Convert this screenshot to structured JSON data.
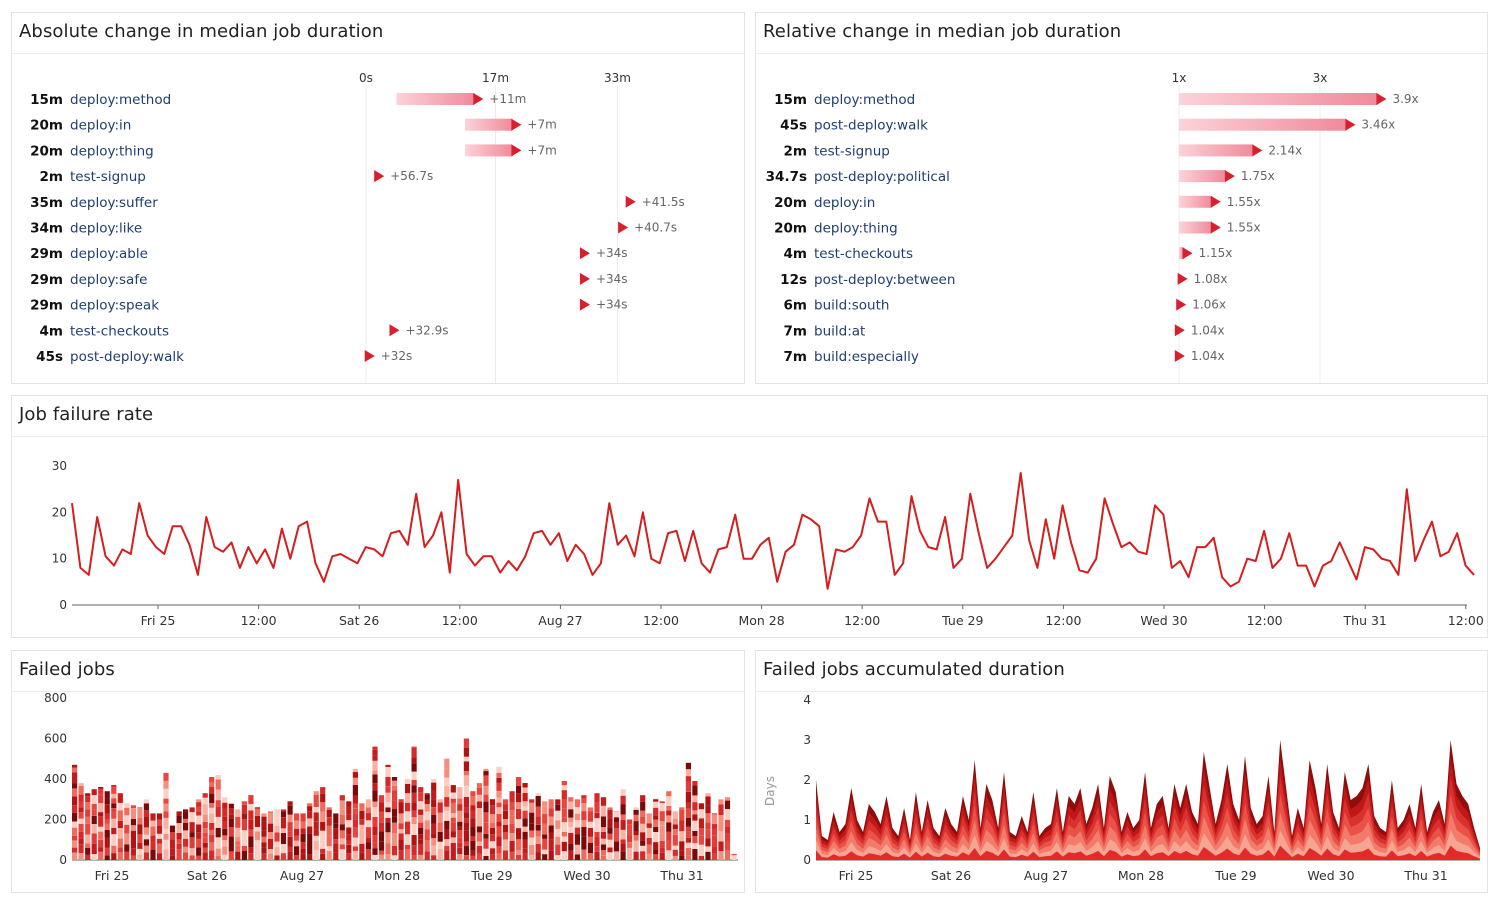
{
  "colors": {
    "accent": "#d81f2e",
    "bar_light": "#f7b3bd",
    "line": "#d31f1f",
    "axis": "#555555",
    "grid": "#e8e8e8",
    "label_blue": "#1f3e70"
  },
  "abs_panel": {
    "title": "Absolute change in median job duration",
    "axis_ticks": [
      {
        "label": "0s",
        "value": 0
      },
      {
        "label": "17m",
        "value": 17
      },
      {
        "label": "33m",
        "value": 33
      }
    ],
    "rows": [
      {
        "duration": "15m",
        "name": "deploy:method",
        "start": 4,
        "end": 15,
        "change": "+11m"
      },
      {
        "duration": "20m",
        "name": "deploy:in",
        "start": 13,
        "end": 20,
        "change": "+7m"
      },
      {
        "duration": "20m",
        "name": "deploy:thing",
        "start": 13,
        "end": 20,
        "change": "+7m"
      },
      {
        "duration": "2m",
        "name": "test-signup",
        "start": 1.05,
        "end": 2,
        "change": "+56.7s"
      },
      {
        "duration": "35m",
        "name": "deploy:suffer",
        "start": 34.3,
        "end": 35,
        "change": "+41.5s"
      },
      {
        "duration": "34m",
        "name": "deploy:like",
        "start": 33.3,
        "end": 34,
        "change": "+40.7s"
      },
      {
        "duration": "29m",
        "name": "deploy:able",
        "start": 28.4,
        "end": 29,
        "change": "+34s"
      },
      {
        "duration": "29m",
        "name": "deploy:safe",
        "start": 28.4,
        "end": 29,
        "change": "+34s"
      },
      {
        "duration": "29m",
        "name": "deploy:speak",
        "start": 28.4,
        "end": 29,
        "change": "+34s"
      },
      {
        "duration": "4m",
        "name": "test-checkouts",
        "start": 3.45,
        "end": 4,
        "change": "+32.9s"
      },
      {
        "duration": "45s",
        "name": "post-deploy:walk",
        "start": 0.2,
        "end": 0.75,
        "change": "+32s"
      }
    ]
  },
  "rel_panel": {
    "title": "Relative change in median job duration",
    "axis_ticks": [
      {
        "label": "1x",
        "value": 1
      },
      {
        "label": "3x",
        "value": 3
      }
    ],
    "rows": [
      {
        "duration": "15m",
        "name": "deploy:method",
        "ratio": 3.9,
        "label": "3.9x"
      },
      {
        "duration": "45s",
        "name": "post-deploy:walk",
        "ratio": 3.46,
        "label": "3.46x"
      },
      {
        "duration": "2m",
        "name": "test-signup",
        "ratio": 2.14,
        "label": "2.14x"
      },
      {
        "duration": "34.7s",
        "name": "post-deploy:political",
        "ratio": 1.75,
        "label": "1.75x"
      },
      {
        "duration": "20m",
        "name": "deploy:in",
        "ratio": 1.55,
        "label": "1.55x"
      },
      {
        "duration": "20m",
        "name": "deploy:thing",
        "ratio": 1.55,
        "label": "1.55x"
      },
      {
        "duration": "4m",
        "name": "test-checkouts",
        "ratio": 1.15,
        "label": "1.15x"
      },
      {
        "duration": "12s",
        "name": "post-deploy:between",
        "ratio": 1.08,
        "label": "1.08x"
      },
      {
        "duration": "6m",
        "name": "build:south",
        "ratio": 1.06,
        "label": "1.06x"
      },
      {
        "duration": "7m",
        "name": "build:at",
        "ratio": 1.04,
        "label": "1.04x"
      },
      {
        "duration": "7m",
        "name": "build:especially",
        "ratio": 1.04,
        "label": "1.04x"
      }
    ]
  },
  "failure_panel": {
    "title": "Job failure rate",
    "y_ticks": [
      "0",
      "10",
      "20",
      "30"
    ],
    "x_ticks": [
      "Fri 25",
      "12:00",
      "Sat 26",
      "12:00",
      "Aug 27",
      "12:00",
      "Mon 28",
      "12:00",
      "Tue 29",
      "12:00",
      "Wed 30",
      "12:00",
      "Thu 31",
      "12:00"
    ]
  },
  "failed_jobs_panel": {
    "title": "Failed jobs",
    "y_ticks": [
      "0",
      "200",
      "400",
      "600",
      "800"
    ],
    "x_ticks": [
      "Fri 25",
      "Sat 26",
      "Aug 27",
      "Mon 28",
      "Tue 29",
      "Wed 30",
      "Thu 31"
    ]
  },
  "duration_panel": {
    "title": "Failed jobs accumulated duration",
    "y_label": "Days",
    "y_ticks": [
      "0",
      "1",
      "2",
      "3",
      "4"
    ],
    "x_ticks": [
      "Fri 25",
      "Sat 26",
      "Aug 27",
      "Mon 28",
      "Tue 29",
      "Wed 30",
      "Thu 31"
    ]
  },
  "chart_data": [
    {
      "type": "line",
      "title": "Job failure rate",
      "x_ticks": [
        "Fri 25",
        "12:00",
        "Sat 26",
        "12:00",
        "Aug 27",
        "12:00",
        "Mon 28",
        "12:00",
        "Tue 29",
        "12:00",
        "Wed 30",
        "12:00",
        "Thu 31",
        "12:00"
      ],
      "ylim": [
        0,
        30
      ],
      "values": [
        22,
        8,
        6.5,
        19,
        10.5,
        8.5,
        12,
        11,
        22,
        15,
        12.5,
        11,
        17,
        17,
        13,
        6.5,
        19,
        12.5,
        11.5,
        13.5,
        8,
        12.5,
        9,
        12,
        8,
        16.5,
        10,
        17,
        18,
        9,
        5,
        10.5,
        11,
        10,
        9,
        12.5,
        12,
        10.5,
        15.5,
        16,
        13,
        24,
        12.5,
        15,
        20,
        7,
        27,
        11,
        8.5,
        10.5,
        10.5,
        7,
        9.5,
        7.5,
        10.5,
        15.5,
        16,
        13,
        15.5,
        9.5,
        13,
        11,
        6.5,
        9,
        22,
        13,
        15,
        10.5,
        20,
        10,
        9,
        15.5,
        16,
        9.5,
        16,
        9,
        7,
        12,
        12.5,
        19.5,
        10,
        10,
        13,
        14.5,
        5,
        11.5,
        13,
        19.5,
        18.5,
        17,
        3.5,
        12,
        11.5,
        12.5,
        15,
        23,
        18,
        18,
        6.5,
        9,
        23.5,
        16,
        12.5,
        12,
        19,
        8,
        10,
        24,
        15.5,
        8,
        10,
        12.5,
        15,
        28.5,
        14,
        8,
        18.5,
        10,
        21.5,
        13.5,
        7.5,
        7,
        10,
        23,
        17.5,
        12.5,
        13.5,
        11.5,
        11,
        21.5,
        19.5,
        8,
        9.5,
        6,
        12.5,
        12.5,
        14.5,
        6,
        4,
        5,
        10,
        9.5,
        16,
        8,
        10,
        15.5,
        8.5,
        8.5,
        4,
        8.5,
        9.5,
        13.5,
        9.5,
        5.5,
        12.5,
        12,
        10,
        9.5,
        6.5,
        25,
        9.5,
        14,
        18,
        10.5,
        11.5,
        15.5,
        8.5,
        6.5
      ]
    },
    {
      "type": "bar",
      "title": "Failed jobs",
      "x_ticks": [
        "Fri 25",
        "Sat 26",
        "Aug 27",
        "Mon 28",
        "Tue 29",
        "Wed 30",
        "Thu 31"
      ],
      "ylim": [
        0,
        800
      ],
      "values": [
        470,
        380,
        330,
        350,
        360,
        340,
        370,
        330,
        280,
        270,
        260,
        300,
        230,
        230,
        430,
        170,
        240,
        250,
        260,
        300,
        330,
        410,
        420,
        310,
        280,
        250,
        290,
        320,
        260,
        230,
        240,
        250,
        250,
        290,
        230,
        230,
        280,
        340,
        360,
        260,
        230,
        320,
        290,
        450,
        280,
        300,
        560,
        320,
        470,
        410,
        300,
        400,
        560,
        360,
        330,
        400,
        300,
        500,
        370,
        360,
        600,
        340,
        380,
        450,
        300,
        460,
        300,
        340,
        410,
        380,
        300,
        330,
        290,
        300,
        300,
        390,
        310,
        300,
        320,
        260,
        330,
        310,
        260,
        240,
        350,
        200,
        260,
        320,
        230,
        300,
        290,
        340,
        240,
        260,
        480,
        390,
        280,
        330,
        230,
        300,
        310,
        30
      ],
      "note": "stacked series by job"
    },
    {
      "type": "area",
      "title": "Failed jobs accumulated duration",
      "ylabel": "Days",
      "x_ticks": [
        "Fri 25",
        "Sat 26",
        "Aug 27",
        "Mon 28",
        "Tue 29",
        "Wed 30",
        "Thu 31"
      ],
      "ylim": [
        0,
        4
      ],
      "values": [
        2,
        0.6,
        0.5,
        1.2,
        0.7,
        0.9,
        1.8,
        1,
        0.7,
        1.4,
        1.2,
        0.9,
        1.6,
        0.8,
        0.6,
        1.3,
        0.5,
        1.7,
        0.7,
        1.5,
        0.8,
        0.6,
        1.3,
        0.9,
        0.7,
        1.6,
        1,
        2.5,
        0.8,
        1.9,
        1.5,
        0.8,
        2.2,
        0.7,
        0.6,
        1.1,
        0.7,
        1.7,
        0.6,
        0.8,
        0.9,
        1.8,
        0.7,
        1.6,
        1.4,
        1.8,
        0.9,
        1.3,
        1.9,
        0.8,
        2.1,
        1.7,
        0.7,
        1.2,
        0.8,
        1,
        2.2,
        0.8,
        1.4,
        1.6,
        0.8,
        1.9,
        1.3,
        1.9,
        1.2,
        0.9,
        2.7,
        1.8,
        0.9,
        1.5,
        2.4,
        1.4,
        1,
        2.6,
        1.3,
        0.9,
        1.1,
        2.1,
        0.7,
        3,
        1.8,
        0.6,
        1.3,
        0.8,
        2.5,
        1.8,
        0.9,
        2.4,
        1.2,
        0.8,
        2.2,
        1.5,
        1.6,
        1.8,
        2.4,
        1.1,
        0.8,
        0.7,
        2,
        0.8,
        1,
        1.4,
        0.8,
        1.9,
        0.7,
        1.2,
        1.5,
        0.9,
        3,
        1.9,
        1.6,
        1.4,
        0.8,
        0.3
      ]
    }
  ]
}
